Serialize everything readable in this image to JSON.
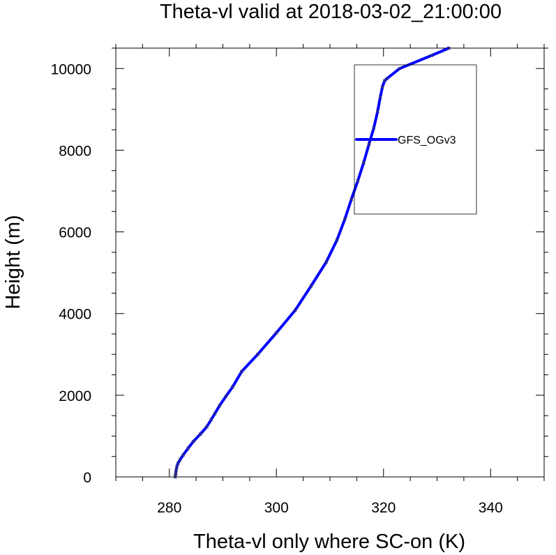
{
  "chart_data": {
    "type": "line",
    "title": "Theta-vl valid at 2018-03-02_21:00:00",
    "xlabel": "Theta-vl only where SC-on (K)",
    "ylabel": "Height (m)",
    "xlim": [
      270,
      350
    ],
    "ylim": [
      0,
      10500
    ],
    "xticks": [
      280,
      300,
      320,
      340
    ],
    "yticks": [
      0,
      2000,
      4000,
      6000,
      8000,
      10000
    ],
    "xtick_labels": [
      "280",
      "300",
      "320",
      "340"
    ],
    "ytick_labels": [
      "0",
      "2000",
      "4000",
      "6000",
      "8000",
      "10000"
    ],
    "grid": false,
    "legend_position": "upper-right inside plot",
    "series": [
      {
        "name": "GFS_OGv3",
        "color": "#0000ff",
        "marker": "x",
        "x": [
          281.1,
          281.1,
          281.2,
          281.2,
          281.3,
          281.4,
          281.6,
          282.0,
          282.6,
          283.5,
          284.5,
          285.8,
          287.0,
          287.8,
          288.5,
          289.4,
          290.6,
          291.8,
          293.5,
          296.5,
          300.0,
          303.5,
          306.5,
          309.3,
          311.3,
          312.8,
          314.0,
          315.2,
          316.3,
          317.3,
          318.2,
          318.9,
          319.4,
          319.8,
          320.2,
          320.6,
          323.0,
          329.0,
          332.2
        ],
        "y": [
          0,
          30,
          70,
          120,
          180,
          250,
          330,
          420,
          540,
          700,
          870,
          1050,
          1230,
          1400,
          1550,
          1750,
          1980,
          2200,
          2580,
          3000,
          3530,
          4080,
          4680,
          5260,
          5800,
          6320,
          6800,
          7250,
          7700,
          8150,
          8550,
          8950,
          9300,
          9550,
          9700,
          9750,
          10000,
          10320,
          10500
        ]
      }
    ]
  }
}
